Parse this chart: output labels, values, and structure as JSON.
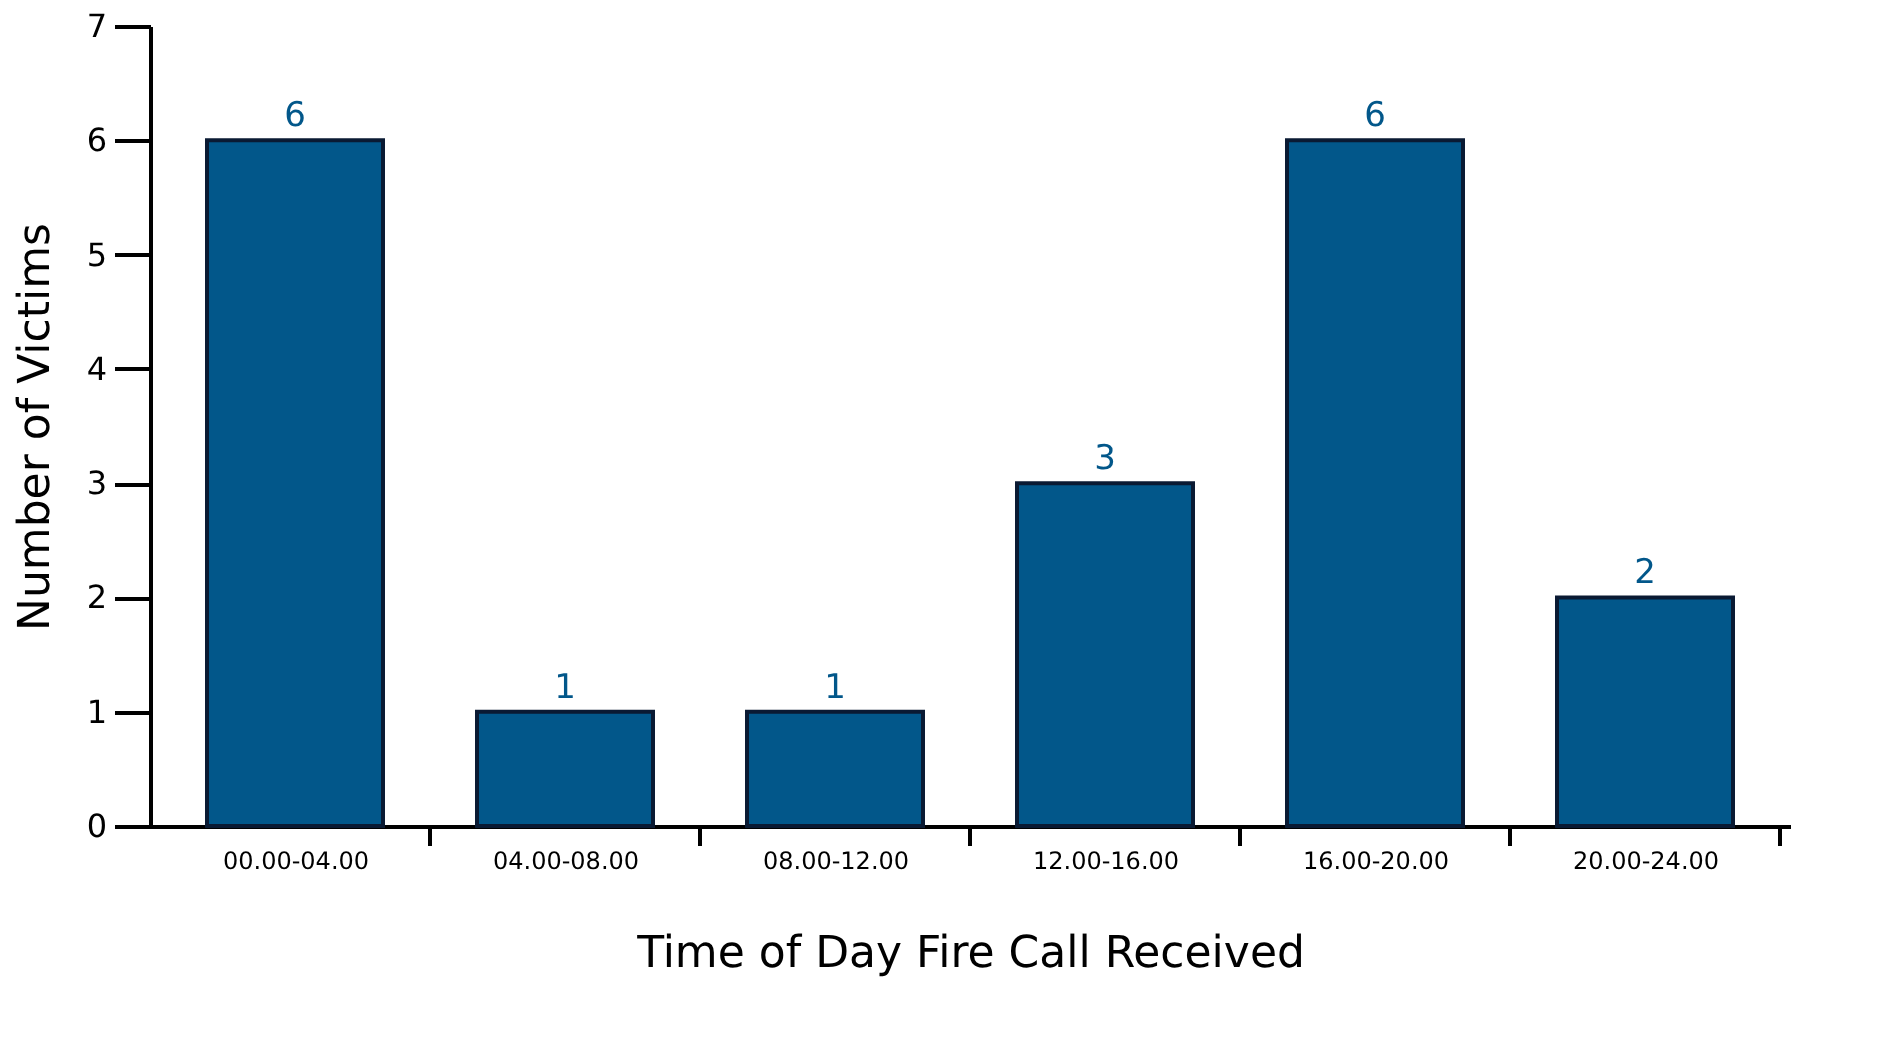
{
  "chart_data": {
    "type": "bar",
    "categories": [
      "00.00-04.00",
      "04.00-08.00",
      "08.00-12.00",
      "12.00-16.00",
      "16.00-20.00",
      "20.00-24.00"
    ],
    "values": [
      6,
      1,
      1,
      3,
      6,
      2
    ],
    "color": "#02578a",
    "xlabel": "Time of Day Fire Call Received",
    "ylabel": "Number of Victims",
    "ylim": [
      0,
      7
    ],
    "yticks": [
      0,
      1,
      2,
      3,
      4,
      5,
      6,
      7
    ],
    "data_labels": true,
    "grid": false
  }
}
